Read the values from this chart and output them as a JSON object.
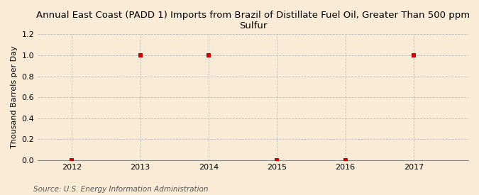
{
  "title": "Annual East Coast (PADD 1) Imports from Brazil of Distillate Fuel Oil, Greater Than 500 ppm\nSulfur",
  "ylabel": "Thousand Barrels per Day",
  "source": "Source: U.S. Energy Information Administration",
  "background_color": "#faebd7",
  "x_values": [
    2012,
    2013,
    2014,
    2015,
    2016,
    2017
  ],
  "y_values": [
    0.0,
    1.0,
    1.0,
    0.0,
    0.0,
    1.0
  ],
  "xlim": [
    2011.5,
    2017.8
  ],
  "ylim": [
    0.0,
    1.2
  ],
  "yticks": [
    0.0,
    0.2,
    0.4,
    0.6,
    0.8,
    1.0,
    1.2
  ],
  "xticks": [
    2012,
    2013,
    2014,
    2015,
    2016,
    2017
  ],
  "marker_color": "#cc0000",
  "marker_size": 4,
  "grid_color": "#bbbbbb",
  "title_fontsize": 9.5,
  "label_fontsize": 8,
  "tick_fontsize": 8,
  "source_fontsize": 7.5
}
